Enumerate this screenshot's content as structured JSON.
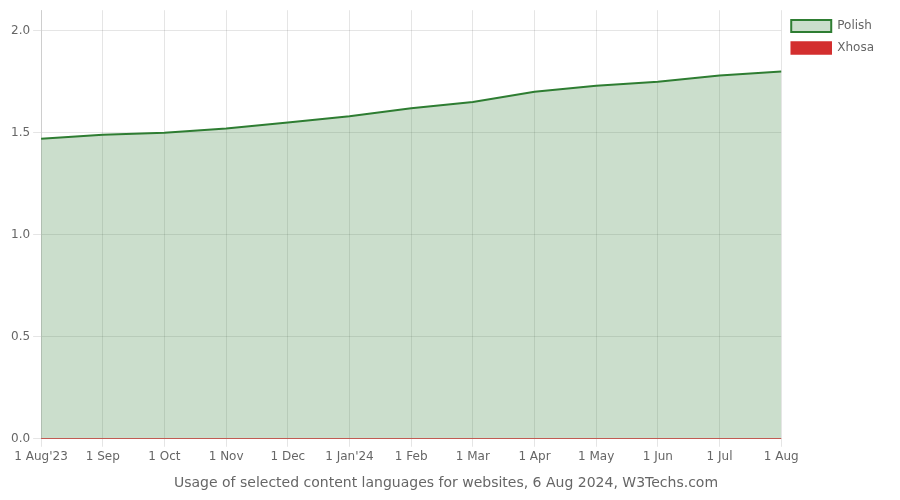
{
  "chart_data": {
    "type": "line",
    "title": "Usage of selected content languages for websites, 6 Aug 2024, W3Techs.com",
    "categories": [
      "1 Aug'23",
      "1 Sep",
      "1 Oct",
      "1 Nov",
      "1 Dec",
      "1 Jan'24",
      "1 Feb",
      "1 Mar",
      "1 Apr",
      "1 May",
      "1 Jun",
      "1 Jul",
      "1 Aug"
    ],
    "series": [
      {
        "name": "Polish",
        "type": "area",
        "color": "#2e7d32",
        "values": [
          1.47,
          1.49,
          1.5,
          1.52,
          1.55,
          1.58,
          1.62,
          1.65,
          1.7,
          1.73,
          1.75,
          1.78,
          1.8
        ]
      },
      {
        "name": "Xhosa",
        "type": "line",
        "color": "#d32f2f",
        "values": [
          0.0,
          0.0,
          0.0,
          0.0,
          0.0,
          0.0,
          0.0,
          0.0,
          0.0,
          0.0,
          0.0,
          0.0,
          0.0
        ]
      }
    ],
    "ylim": [
      0,
      2.1
    ],
    "yticks": [
      {
        "value": 0,
        "label": "0.0"
      },
      {
        "value": 0.5,
        "label": "0.5"
      },
      {
        "value": 1,
        "label": "1.0"
      },
      {
        "value": 1.5,
        "label": "1.5"
      },
      {
        "value": 2,
        "label": "2.0"
      }
    ],
    "grid": true,
    "legend": "upper right"
  }
}
